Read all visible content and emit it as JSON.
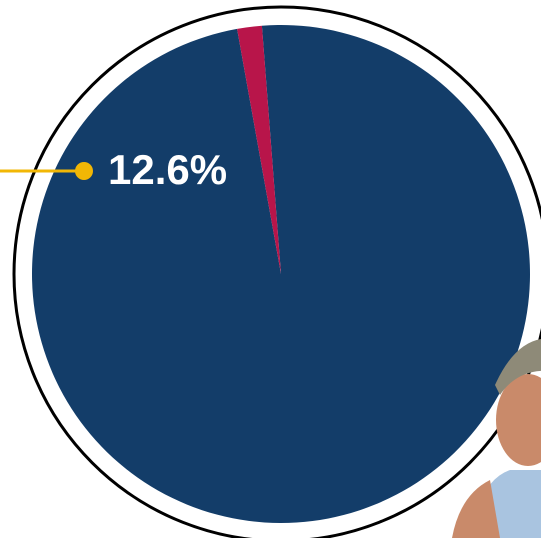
{
  "chart_data": {
    "type": "pie",
    "categories": [
      null,
      null
    ],
    "values": [
      98.4,
      1.6
    ],
    "colors": [
      "#133d69",
      "#b8154a"
    ],
    "annotation": "12.6%",
    "annotation_color": "#f2b705"
  }
}
